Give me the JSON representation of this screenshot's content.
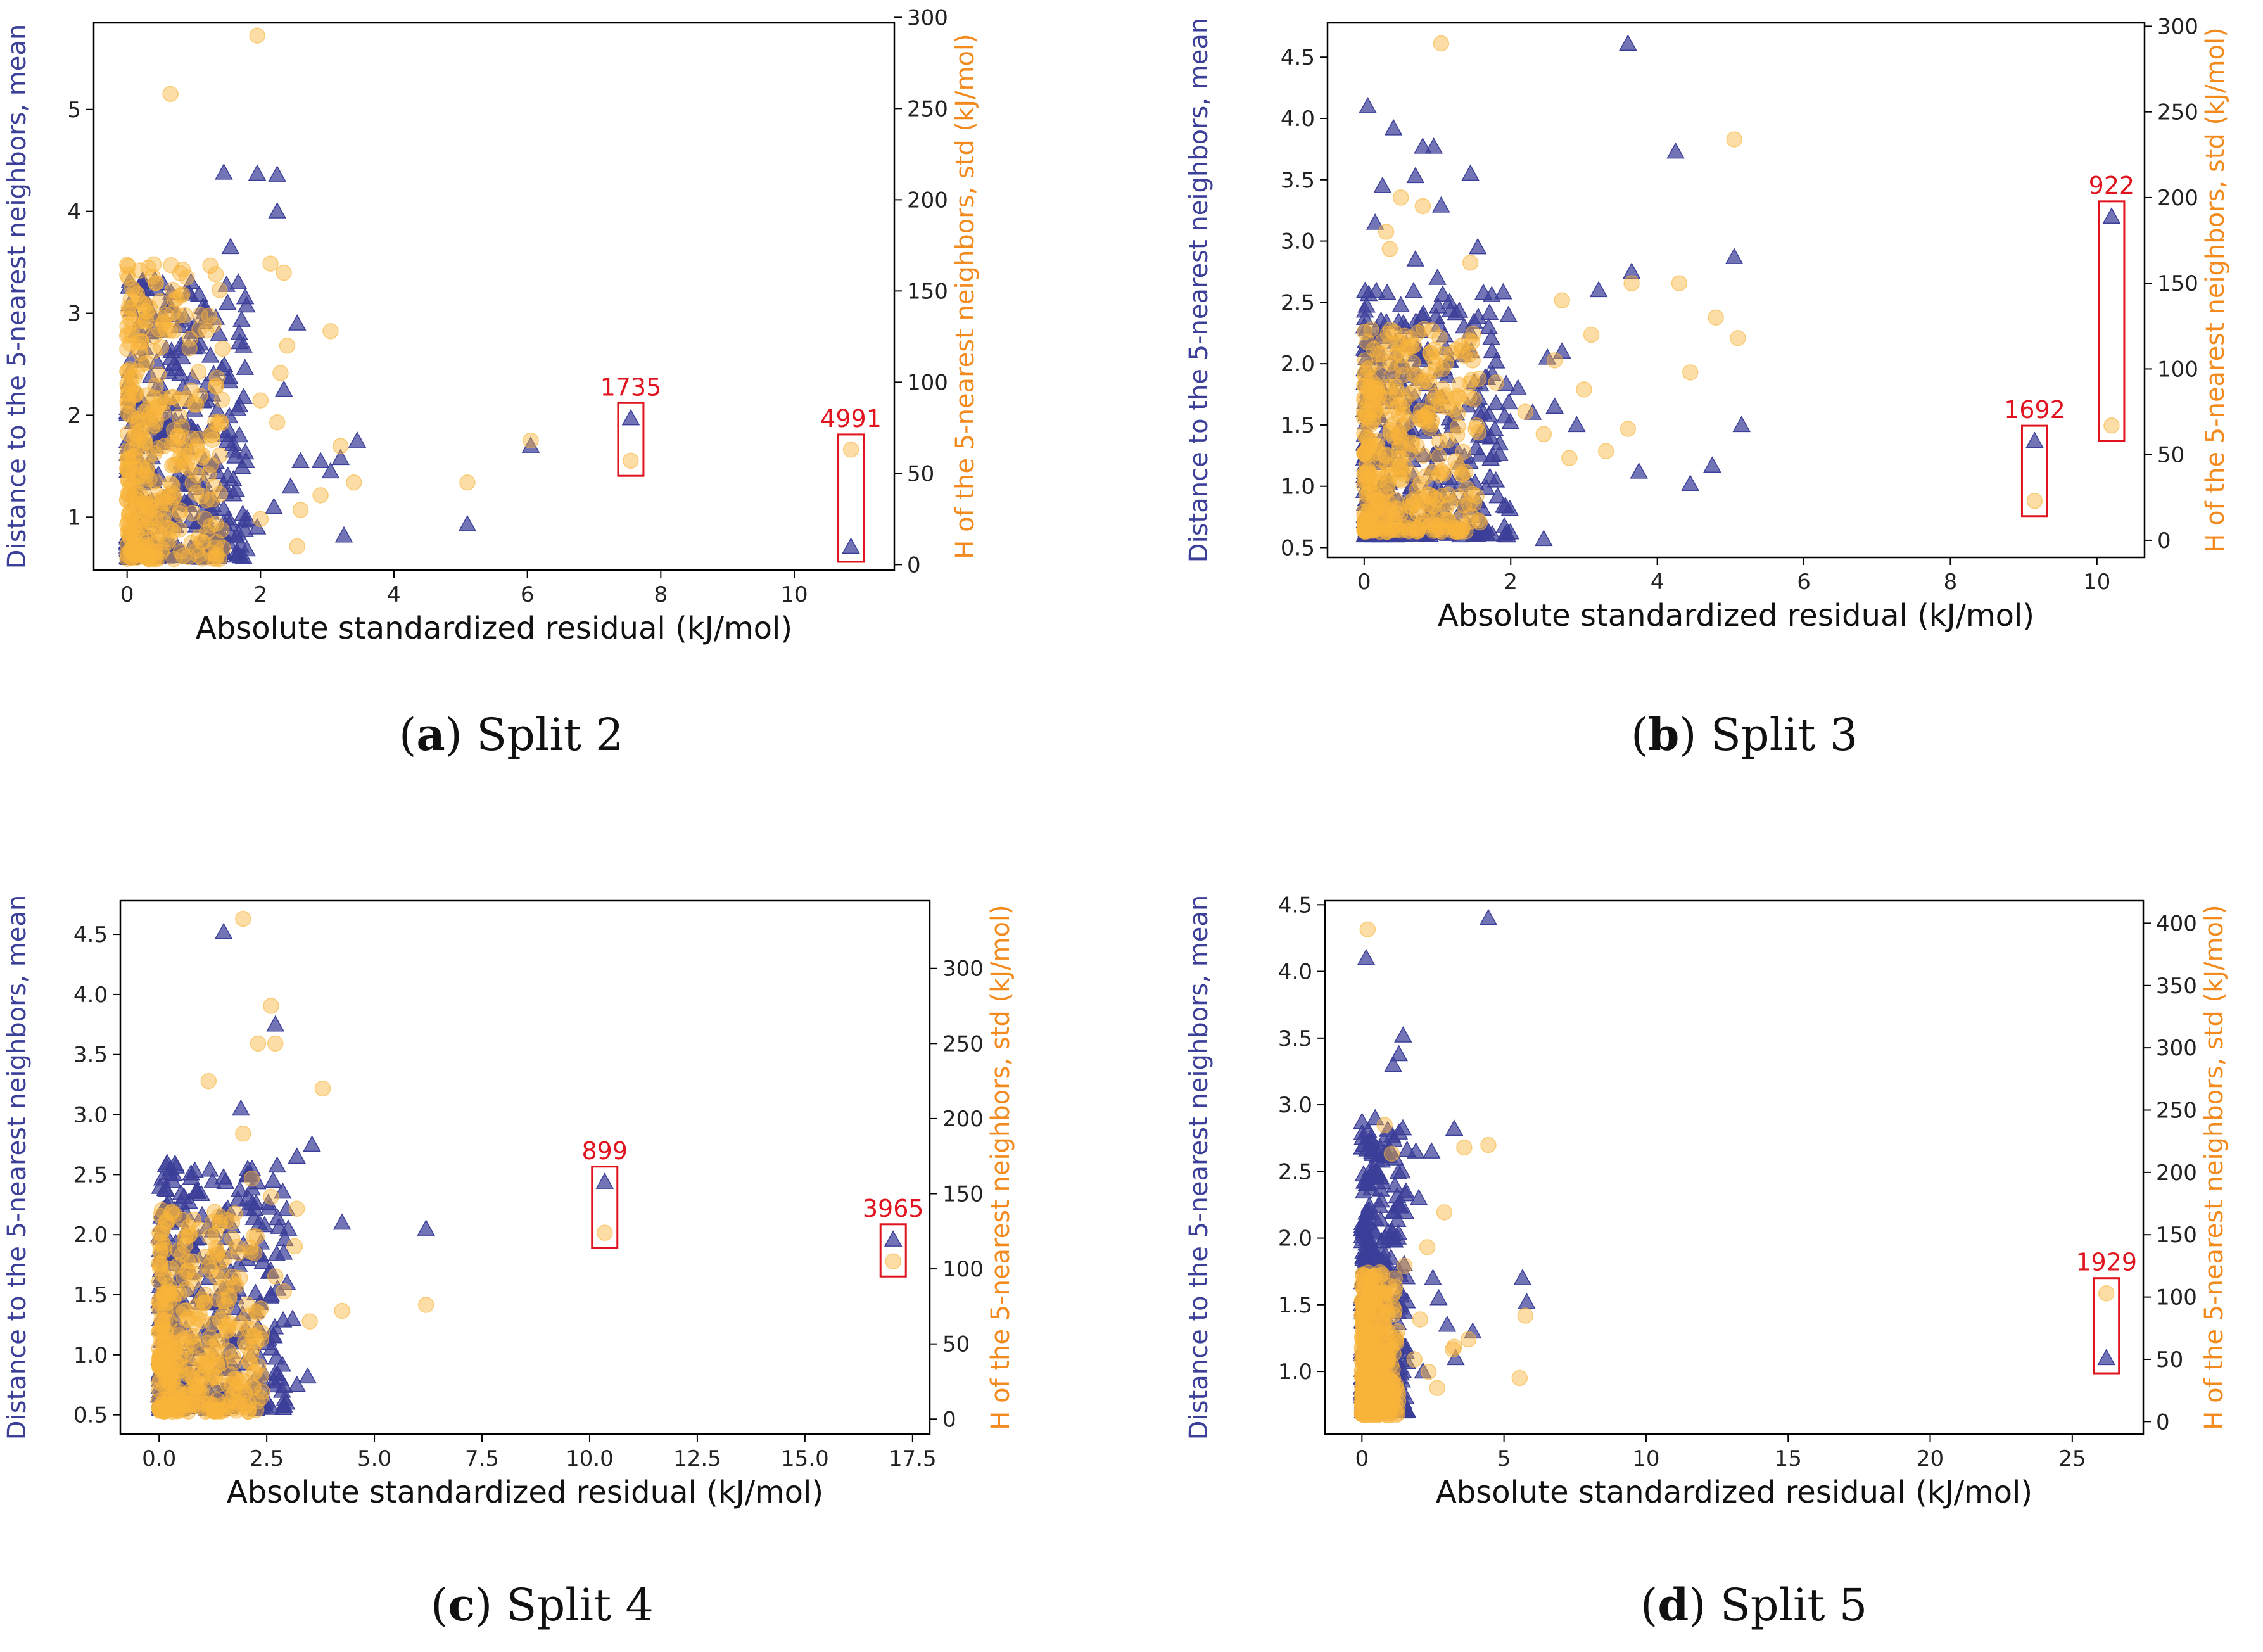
{
  "colors": {
    "left": "#3b3f98",
    "right": "#f28a1e",
    "tri": "#3b3f98",
    "circ": "#f9b43a",
    "ann": "#e0141e"
  },
  "chart_data": [
    {
      "type": "scatter",
      "caption": {
        "letter": "a",
        "text": "Split 2"
      },
      "xlabel": "Absolute standardized residual (kJ/mol)",
      "ylabel": "Distance to the 5-nearest neighbors, mean",
      "y2label": "H of the 5-nearest neighbors, std (kJ/mol)",
      "xlim": [
        -0.5,
        11.5
      ],
      "ylim": [
        0.48,
        5.85
      ],
      "y2lim": [
        -3,
        297
      ],
      "xticks": [
        0,
        2,
        4,
        6,
        8,
        10
      ],
      "xtick_labels": [
        "0",
        "2",
        "4",
        "6",
        "8",
        "10"
      ],
      "yticks": [
        1,
        2,
        3,
        4,
        5
      ],
      "ytick_labels": [
        "1",
        "2",
        "3",
        "4",
        "5"
      ],
      "y2ticks": [
        0,
        50,
        100,
        150,
        200,
        250,
        300
      ],
      "y2tick_labels": [
        "0",
        "50",
        "100",
        "150",
        "200",
        "250",
        "300"
      ],
      "cluster": {
        "n": 360,
        "xmax": 1.8,
        "ylo": 0.6,
        "yhi": 3.35,
        "y2lo": 3,
        "y2hi": 165,
        "seed": 11
      },
      "distance_points": [
        [
          1.45,
          4.38
        ],
        [
          1.95,
          4.37
        ],
        [
          2.25,
          4.36
        ],
        [
          2.25,
          4.0
        ],
        [
          1.55,
          3.65
        ],
        [
          2.55,
          2.9
        ],
        [
          2.35,
          2.25
        ],
        [
          2.6,
          1.55
        ],
        [
          2.45,
          1.3
        ],
        [
          3.45,
          1.75
        ],
        [
          3.2,
          1.58
        ],
        [
          2.2,
          1.1
        ],
        [
          3.25,
          0.82
        ],
        [
          1.95,
          0.9
        ],
        [
          5.1,
          0.93
        ],
        [
          6.05,
          1.7
        ],
        [
          1.7,
          0.72
        ],
        [
          2.9,
          1.55
        ],
        [
          3.05,
          1.45
        ]
      ],
      "h_points": [
        [
          1.95,
          290
        ],
        [
          0.65,
          258
        ],
        [
          2.15,
          165
        ],
        [
          2.35,
          160
        ],
        [
          3.05,
          128
        ],
        [
          2.4,
          120
        ],
        [
          2.3,
          105
        ],
        [
          2.0,
          90
        ],
        [
          3.4,
          45
        ],
        [
          2.9,
          38
        ],
        [
          5.1,
          45
        ],
        [
          6.05,
          68
        ],
        [
          2.55,
          10
        ],
        [
          2.0,
          25
        ],
        [
          2.6,
          30
        ],
        [
          3.2,
          65
        ],
        [
          2.25,
          78
        ]
      ],
      "highlights": [
        {
          "label": "1735",
          "x": 7.55,
          "y": 1.97,
          "y2": 57
        },
        {
          "label": "4991",
          "x": 10.85,
          "y": 0.71,
          "y2": 63
        }
      ]
    },
    {
      "type": "scatter",
      "caption": {
        "letter": "b",
        "text": "Split 3"
      },
      "xlabel": "Absolute standardized residual (kJ/mol)",
      "ylabel": "Distance to the 5-nearest neighbors, mean",
      "y2label": "H of the 5-nearest neighbors, std (kJ/mol)",
      "xlim": [
        -0.5,
        10.65
      ],
      "ylim": [
        0.42,
        4.78
      ],
      "y2lim": [
        -10,
        302
      ],
      "xticks": [
        0,
        2,
        4,
        6,
        8,
        10
      ],
      "xtick_labels": [
        "0",
        "2",
        "4",
        "6",
        "8",
        "10"
      ],
      "yticks": [
        0.5,
        1.0,
        1.5,
        2.0,
        2.5,
        3.0,
        3.5,
        4.0,
        4.5
      ],
      "ytick_labels": [
        "0.5",
        "1.0",
        "1.5",
        "2.0",
        "2.5",
        "3.0",
        "3.5",
        "4.0",
        "4.5"
      ],
      "y2ticks": [
        0,
        50,
        100,
        150,
        200,
        250,
        300
      ],
      "y2tick_labels": [
        "0",
        "50",
        "100",
        "150",
        "200",
        "250",
        "300"
      ],
      "cluster": {
        "n": 380,
        "xmax": 2.0,
        "ylo": 0.6,
        "yhi": 2.6,
        "y2lo": 5,
        "y2hi": 125,
        "seed": 23
      },
      "distance_points": [
        [
          0.05,
          4.1
        ],
        [
          0.4,
          3.92
        ],
        [
          0.8,
          3.77
        ],
        [
          0.95,
          3.77
        ],
        [
          0.25,
          3.45
        ],
        [
          0.7,
          3.53
        ],
        [
          1.45,
          3.55
        ],
        [
          0.15,
          3.15
        ],
        [
          1.05,
          3.29
        ],
        [
          1.55,
          2.95
        ],
        [
          0.7,
          2.85
        ],
        [
          1.0,
          2.7
        ],
        [
          2.5,
          2.05
        ],
        [
          2.7,
          2.1
        ],
        [
          3.2,
          2.6
        ],
        [
          3.65,
          2.75
        ],
        [
          4.25,
          3.73
        ],
        [
          5.05,
          2.87
        ],
        [
          3.6,
          4.61
        ],
        [
          3.75,
          1.12
        ],
        [
          4.45,
          1.02
        ],
        [
          4.75,
          1.17
        ],
        [
          5.15,
          1.5
        ],
        [
          2.45,
          0.57
        ],
        [
          2.6,
          1.65
        ],
        [
          1.85,
          1.35
        ],
        [
          2.1,
          1.8
        ],
        [
          2.9,
          1.5
        ],
        [
          1.7,
          2.3
        ],
        [
          2.3,
          1.6
        ]
      ],
      "h_points": [
        [
          1.05,
          290
        ],
        [
          5.05,
          234
        ],
        [
          0.3,
          180
        ],
        [
          0.5,
          200
        ],
        [
          0.8,
          195
        ],
        [
          3.65,
          150
        ],
        [
          4.3,
          150
        ],
        [
          4.8,
          130
        ],
        [
          5.1,
          118
        ],
        [
          4.45,
          98
        ],
        [
          3.1,
          120
        ],
        [
          2.7,
          140
        ],
        [
          2.6,
          105
        ],
        [
          3.6,
          65
        ],
        [
          3.3,
          52
        ],
        [
          2.8,
          48
        ],
        [
          2.2,
          75
        ],
        [
          1.8,
          92
        ],
        [
          1.45,
          162
        ],
        [
          0.35,
          170
        ],
        [
          2.45,
          62
        ],
        [
          3.0,
          88
        ]
      ],
      "highlights": [
        {
          "label": "1692",
          "x": 9.15,
          "y": 1.37,
          "y2": 23
        },
        {
          "label": "922",
          "x": 10.2,
          "y": 3.2,
          "y2": 67
        }
      ]
    },
    {
      "type": "scatter",
      "caption": {
        "letter": "c",
        "text": "Split 4"
      },
      "xlabel": "Absolute standardized residual (kJ/mol)",
      "ylabel": "Distance to the 5-nearest neighbors, mean",
      "y2label": "H of the 5-nearest neighbors, std (kJ/mol)",
      "xlim": [
        -0.9,
        17.9
      ],
      "ylim": [
        0.34,
        4.78
      ],
      "y2lim": [
        -10,
        345
      ],
      "xticks": [
        0,
        2.5,
        5,
        7.5,
        10,
        12.5,
        15,
        17.5
      ],
      "xtick_labels": [
        "0.0",
        "2.5",
        "5.0",
        "7.5",
        "10.0",
        "12.5",
        "15.0",
        "17.5"
      ],
      "yticks": [
        0.5,
        1.0,
        1.5,
        2.0,
        2.5,
        3.0,
        3.5,
        4.0,
        4.5
      ],
      "ytick_labels": [
        "0.5",
        "1.0",
        "1.5",
        "2.0",
        "2.5",
        "3.0",
        "3.5",
        "4.0",
        "4.5"
      ],
      "y2ticks": [
        0,
        50,
        100,
        150,
        200,
        250,
        300
      ],
      "y2tick_labels": [
        "0",
        "50",
        "100",
        "150",
        "200",
        "250",
        "300"
      ],
      "cluster": {
        "n": 380,
        "xmax": 3.0,
        "ylo": 0.55,
        "yhi": 2.6,
        "y2lo": 5,
        "y2hi": 140,
        "seed": 37
      },
      "distance_points": [
        [
          1.5,
          4.52
        ],
        [
          2.7,
          3.75
        ],
        [
          1.9,
          3.05
        ],
        [
          3.2,
          2.65
        ],
        [
          3.55,
          2.75
        ],
        [
          2.1,
          2.5
        ],
        [
          2.65,
          2.45
        ],
        [
          4.25,
          2.1
        ],
        [
          6.2,
          2.05
        ],
        [
          3.0,
          2.05
        ],
        [
          2.75,
          1.55
        ],
        [
          3.2,
          0.75
        ],
        [
          3.45,
          0.82
        ],
        [
          2.9,
          0.58
        ],
        [
          1.65,
          0.57
        ],
        [
          2.35,
          1.2
        ],
        [
          3.1,
          1.3
        ],
        [
          1.85,
          1.75
        ],
        [
          2.5,
          1.1
        ]
      ],
      "h_points": [
        [
          1.95,
          333
        ],
        [
          2.7,
          250
        ],
        [
          3.8,
          220
        ],
        [
          1.15,
          225
        ],
        [
          2.3,
          250
        ],
        [
          2.6,
          275
        ],
        [
          1.95,
          190
        ],
        [
          3.2,
          140
        ],
        [
          2.6,
          148
        ],
        [
          4.25,
          72
        ],
        [
          6.2,
          76
        ],
        [
          3.15,
          115
        ],
        [
          2.7,
          95
        ],
        [
          2.15,
          160
        ],
        [
          1.7,
          120
        ],
        [
          3.5,
          65
        ],
        [
          2.9,
          85
        ],
        [
          1.4,
          135
        ]
      ],
      "highlights": [
        {
          "label": "899",
          "x": 10.35,
          "y": 2.44,
          "y2": 124
        },
        {
          "label": "3965",
          "x": 17.05,
          "y": 1.96,
          "y2": 105
        }
      ]
    },
    {
      "type": "scatter",
      "caption": {
        "letter": "d",
        "text": "Split 5"
      },
      "xlabel": "Absolute standardized residual (kJ/mol)",
      "ylabel": "Distance to the 5-nearest neighbors, mean",
      "y2label": "H of the 5-nearest neighbors, std (kJ/mol)",
      "xlim": [
        -1.3,
        27.5
      ],
      "ylim": [
        0.53,
        4.53
      ],
      "y2lim": [
        -10,
        418
      ],
      "xticks": [
        0,
        5,
        10,
        15,
        20,
        25
      ],
      "xtick_labels": [
        "0",
        "5",
        "10",
        "15",
        "20",
        "25"
      ],
      "yticks": [
        1.0,
        1.5,
        2.0,
        2.5,
        3.0,
        3.5,
        4.0,
        4.5
      ],
      "ytick_labels": [
        "1.0",
        "1.5",
        "2.0",
        "2.5",
        "3.0",
        "3.5",
        "4.0",
        "4.5"
      ],
      "y2ticks": [
        0,
        50,
        100,
        150,
        200,
        250,
        300,
        350,
        400
      ],
      "y2tick_labels": [
        "0",
        "50",
        "100",
        "150",
        "200",
        "250",
        "300",
        "350",
        "400"
      ],
      "cluster": {
        "n": 360,
        "xmax": 1.6,
        "ylo": 0.7,
        "yhi": 2.9,
        "y2lo": 5,
        "y2hi": 120,
        "seed": 53
      },
      "distance_points": [
        [
          0.15,
          4.1
        ],
        [
          4.45,
          4.4
        ],
        [
          1.45,
          3.52
        ],
        [
          1.3,
          3.38
        ],
        [
          1.1,
          3.3
        ],
        [
          3.25,
          2.82
        ],
        [
          1.9,
          2.65
        ],
        [
          2.45,
          2.65
        ],
        [
          5.65,
          1.7
        ],
        [
          5.8,
          1.52
        ],
        [
          2.0,
          2.3
        ],
        [
          1.55,
          2.35
        ],
        [
          3.9,
          1.3
        ],
        [
          2.5,
          1.7
        ],
        [
          3.0,
          1.35
        ],
        [
          1.35,
          1.6
        ],
        [
          2.15,
          1.0
        ],
        [
          3.3,
          1.1
        ],
        [
          2.7,
          1.55
        ]
      ],
      "h_points": [
        [
          0.2,
          395
        ],
        [
          4.45,
          222
        ],
        [
          3.6,
          220
        ],
        [
          1.05,
          215
        ],
        [
          0.8,
          238
        ],
        [
          2.9,
          168
        ],
        [
          5.75,
          85
        ],
        [
          5.55,
          35
        ],
        [
          3.75,
          66
        ],
        [
          3.2,
          58
        ],
        [
          2.35,
          40
        ],
        [
          2.65,
          27
        ],
        [
          1.85,
          50
        ],
        [
          2.05,
          82
        ],
        [
          3.25,
          60
        ],
        [
          2.3,
          140
        ],
        [
          1.5,
          125
        ]
      ],
      "highlights": [
        {
          "label": "1929",
          "x": 26.2,
          "y": 1.1,
          "y2": 103
        }
      ]
    }
  ]
}
